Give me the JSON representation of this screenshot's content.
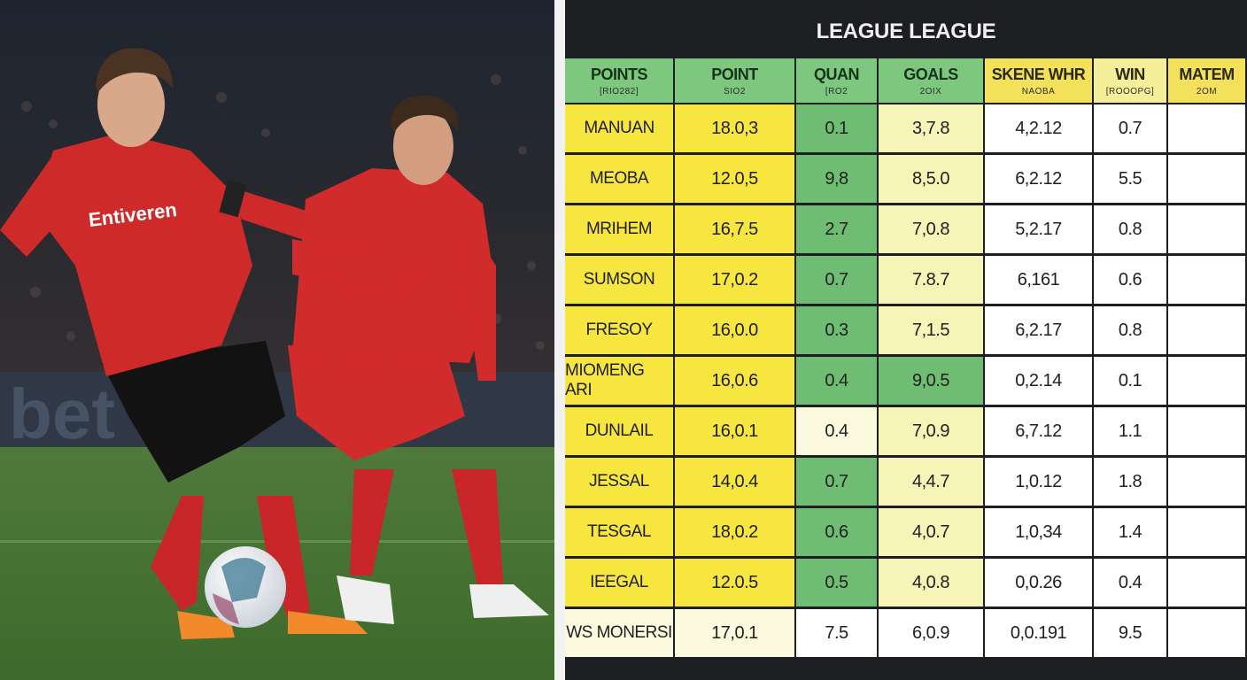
{
  "chart_data": {
    "type": "table",
    "title": "LEAGUE LEAGUE",
    "columns": [
      {
        "label": "POINTS",
        "sub": "[RIO282]"
      },
      {
        "label": "POINT",
        "sub": "SIO2"
      },
      {
        "label": "QUAN",
        "sub": "[RO2"
      },
      {
        "label": "GOALS",
        "sub": "2OIX"
      },
      {
        "label": "SKENE WHR",
        "sub": "NAOBA"
      },
      {
        "label": "WIN",
        "sub": "[ROOOPG]"
      },
      {
        "label": "MATEM",
        "sub": "2OM"
      }
    ],
    "rows": [
      [
        "MANUAN",
        "18.0,3",
        "0.1",
        "3,7.8",
        "4,2.12",
        "0.7",
        ""
      ],
      [
        "MEOBA",
        "12.0,5",
        "9,8",
        "8,5.0",
        "6,2.12",
        "5.5",
        ""
      ],
      [
        "MRIHEM",
        "16,7.5",
        "2.7",
        "7,0.8",
        "5,2.17",
        "0.8",
        ""
      ],
      [
        "SUMSON",
        "17,0.2",
        "0.7",
        "7.8.7",
        "6,161",
        "0.6",
        ""
      ],
      [
        "FRESOY",
        "16,0.0",
        "0.3",
        "7,1.5",
        "6,2.17",
        "0.8",
        ""
      ],
      [
        "MIOMENG ARI",
        "16,0.6",
        "0.4",
        "9,0.5",
        "0,2.14",
        "0.1",
        ""
      ],
      [
        "DUNLAIL",
        "16,0.1",
        "0.4",
        "7,0.9",
        "6,7.12",
        "1.1",
        ""
      ],
      [
        "JESSAL",
        "14,0.4",
        "0.7",
        "4,4.7",
        "1,0.12",
        "1.8",
        ""
      ],
      [
        "TESGAL",
        "18,0.2",
        "0.6",
        "4,0.7",
        "1,0,34",
        "1.4",
        ""
      ],
      [
        "IEEGAL",
        "12.0.5",
        "0.5",
        "4,0.8",
        "0,0.26",
        "0.4",
        ""
      ],
      [
        "WS MONERSI",
        "17,0.1",
        "7.5",
        "6,0.9",
        "0,0.191",
        "9.5",
        ""
      ]
    ]
  },
  "colors": {
    "header": [
      "#7ec77f",
      "#7ec77f",
      "#7ec77f",
      "#7ec77f",
      "#f4e15b",
      "#f6ef9a",
      "#f4e15b"
    ],
    "body": [
      [
        "#f7e640",
        "#f7e640",
        "#6fbd72",
        "#f7f4b8",
        "#ffffff",
        "#ffffff",
        "#ffffff"
      ],
      [
        "#f7e640",
        "#f7e640",
        "#6fbd72",
        "#f7f4b8",
        "#ffffff",
        "#ffffff",
        "#ffffff"
      ],
      [
        "#f7e640",
        "#f7e640",
        "#6fbd72",
        "#f7f4b8",
        "#ffffff",
        "#ffffff",
        "#ffffff"
      ],
      [
        "#f7e640",
        "#f7e640",
        "#6fbd72",
        "#f7f4b8",
        "#ffffff",
        "#ffffff",
        "#ffffff"
      ],
      [
        "#f7e640",
        "#f7e640",
        "#6fbd72",
        "#f7f4b8",
        "#ffffff",
        "#ffffff",
        "#ffffff"
      ],
      [
        "#f7e640",
        "#f7e640",
        "#6fbd72",
        "#6fbd72",
        "#ffffff",
        "#ffffff",
        "#ffffff"
      ],
      [
        "#f7e640",
        "#f7e640",
        "#fbf9de",
        "#f7f4b8",
        "#ffffff",
        "#ffffff",
        "#ffffff"
      ],
      [
        "#f7e640",
        "#f7e640",
        "#6fbd72",
        "#f7f4b8",
        "#ffffff",
        "#ffffff",
        "#ffffff"
      ],
      [
        "#f7e640",
        "#f7e640",
        "#6fbd72",
        "#f7f4b8",
        "#ffffff",
        "#ffffff",
        "#ffffff"
      ],
      [
        "#f7e640",
        "#f7e640",
        "#6fbd72",
        "#f7f4b8",
        "#ffffff",
        "#ffffff",
        "#ffffff"
      ],
      [
        "#fbf9de",
        "#fbf9de",
        "#ffffff",
        "#ffffff",
        "#ffffff",
        "#ffffff",
        "#ffffff"
      ]
    ]
  },
  "photo": {
    "description_icon": "football-players-photo",
    "jersey_sponsor": "Entiveren"
  }
}
